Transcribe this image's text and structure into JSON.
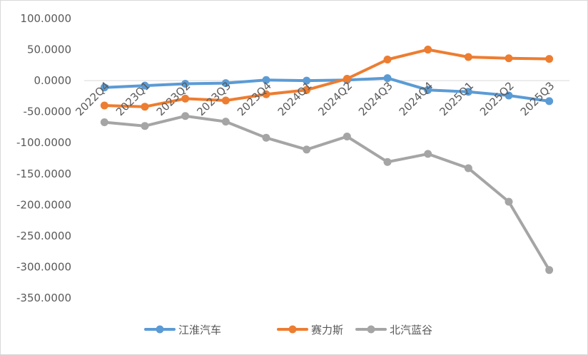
{
  "chart_data": {
    "type": "line",
    "title": "",
    "xlabel": "",
    "ylabel": "",
    "categories": [
      "2022Q4",
      "2023Q1",
      "2023Q2",
      "2023Q3",
      "2023Q4",
      "2024Q1",
      "2024Q2",
      "2024Q3",
      "2024Q4",
      "2025Q1",
      "2025Q2",
      "2025Q3"
    ],
    "ylim": [
      -350,
      100
    ],
    "yticks": [
      100,
      50,
      0,
      -50,
      -100,
      -150,
      -200,
      -250,
      -300,
      -350
    ],
    "ytick_labels": [
      "100.0000",
      "50.0000",
      "0.0000",
      "-50.0000",
      "-100.0000",
      "-150.0000",
      "-200.0000",
      "-250.0000",
      "-300.0000",
      "-350.0000"
    ],
    "grid": {
      "horizontal": false,
      "zero_line": true
    },
    "legend_position": "bottom",
    "series": [
      {
        "name": "江淮汽车",
        "color": "#5b9bd5",
        "values": [
          -11,
          -8,
          -5,
          -4,
          1,
          0,
          1,
          4,
          -15,
          -18,
          -24,
          -33
        ]
      },
      {
        "name": "赛力斯",
        "color": "#ed7d31",
        "values": [
          -40,
          -42,
          -29,
          -32,
          -22,
          -15,
          3,
          34,
          50,
          38,
          36,
          35
        ]
      },
      {
        "name": "北汽蓝谷",
        "color": "#a5a5a5",
        "values": [
          -67,
          -73,
          -57,
          -66,
          -92,
          -111,
          -90,
          -131,
          -118,
          -141,
          -195,
          -305
        ]
      }
    ]
  }
}
